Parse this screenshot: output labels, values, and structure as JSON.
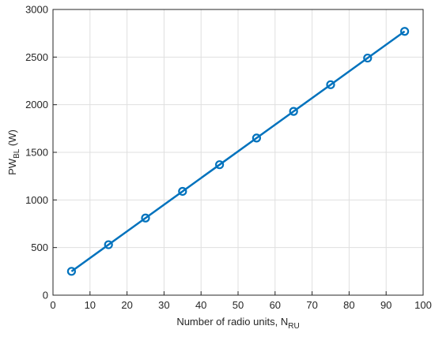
{
  "chart_data": {
    "type": "line",
    "xlabel": {
      "main": "Number of radio units, N",
      "subscript": "RU"
    },
    "ylabel": {
      "main": "PW",
      "subscript": "BL",
      "suffix": " (W)"
    },
    "x": [
      5,
      15,
      25,
      35,
      45,
      55,
      65,
      75,
      85,
      95
    ],
    "values": [
      250,
      530,
      810,
      1090,
      1370,
      1650,
      1930,
      2210,
      2490,
      2770
    ],
    "color": "#0072BD",
    "marker": "circle",
    "xlim": [
      0,
      100
    ],
    "xticks": [
      0,
      10,
      20,
      30,
      40,
      50,
      60,
      70,
      80,
      90,
      100
    ],
    "ylim": [
      0,
      3000
    ],
    "yticks": [
      0,
      500,
      1000,
      1500,
      2000,
      2500,
      3000
    ],
    "grid": true
  }
}
